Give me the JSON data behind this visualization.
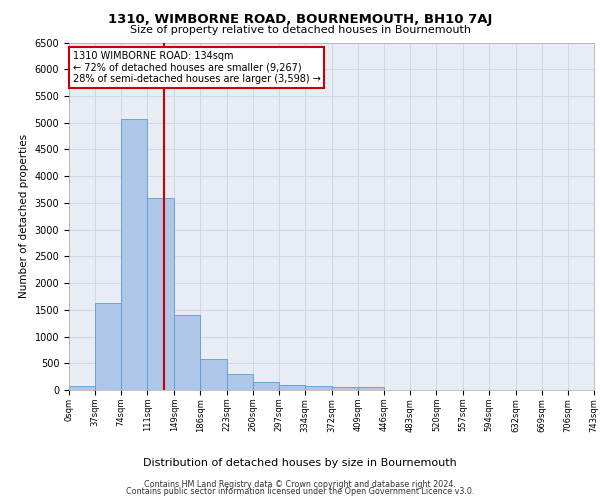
{
  "title": "1310, WIMBORNE ROAD, BOURNEMOUTH, BH10 7AJ",
  "subtitle": "Size of property relative to detached houses in Bournemouth",
  "xlabel": "Distribution of detached houses by size in Bournemouth",
  "ylabel": "Number of detached properties",
  "footer1": "Contains HM Land Registry data © Crown copyright and database right 2024.",
  "footer2": "Contains public sector information licensed under the Open Government Licence v3.0.",
  "property_size": 134,
  "property_label": "1310 WIMBORNE ROAD: 134sqm",
  "pct_smaller": 72,
  "n_smaller": 9267,
  "pct_larger": 28,
  "n_larger": 3598,
  "bin_edges": [
    0,
    37,
    74,
    111,
    149,
    186,
    223,
    260,
    297,
    334,
    372,
    409,
    446,
    483,
    520,
    557,
    594,
    632,
    669,
    706,
    743
  ],
  "bin_counts": [
    75,
    1625,
    5075,
    3600,
    1400,
    575,
    300,
    150,
    100,
    75,
    50,
    50,
    0,
    0,
    0,
    0,
    0,
    0,
    0,
    0
  ],
  "bar_color": "#aec6e8",
  "bar_edge_color": "#5b9bd5",
  "vline_x": 134,
  "vline_color": "#cc0000",
  "annotation_box_color": "#cc0000",
  "grid_color": "#d0d8e8",
  "bg_color": "#e8edf5",
  "ylim": [
    0,
    6500
  ],
  "yticks": [
    0,
    500,
    1000,
    1500,
    2000,
    2500,
    3000,
    3500,
    4000,
    4500,
    5000,
    5500,
    6000,
    6500
  ]
}
